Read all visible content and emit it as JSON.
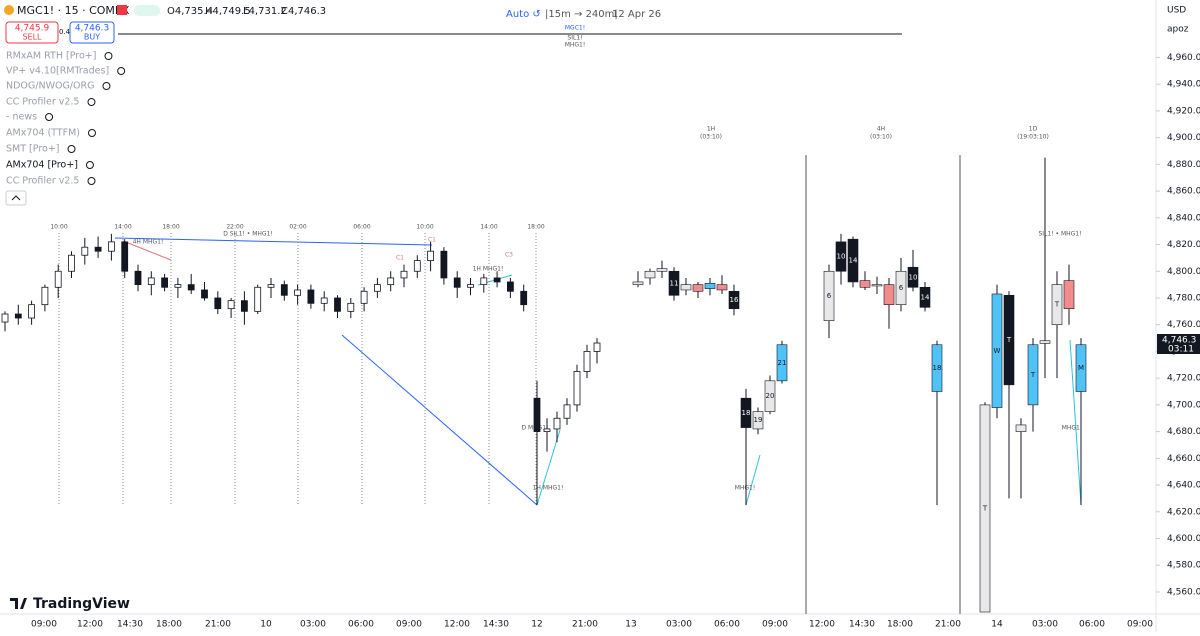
{
  "header": {
    "symbol": "MGC1! · 15 · COMEX",
    "open": "O4,735.4",
    "high": "H4,749.5",
    "low": "L4,731.2",
    "close": "C4,746.3"
  },
  "trade": {
    "sell_price": "4,745.9",
    "sell_label": "SELL",
    "spread": "0.4",
    "buy_price": "4,746.3",
    "buy_label": "BUY"
  },
  "toolbar": {
    "auto": "Auto ↺",
    "interval": "|15m → 240m|",
    "date": "12 Apr 26",
    "currency": "USD",
    "user": "apoz"
  },
  "center_labels": [
    "MGC1!",
    "SIL1!",
    "MHG1!"
  ],
  "indicators": [
    "RMxAM RTH [Pro+]",
    "VP+ v4.10[RMTrades]",
    "NDOG/NWOG/ORG",
    "CC Profiler v2.5",
    "- news",
    "AMx704 (TTFM)",
    "SMT [Pro+]",
    "AMx704 [Pro+]",
    "CC Profiler v2.5"
  ],
  "logo": "TradingView",
  "annotations": [
    "4H MHG1!",
    "D SIL1! • MHG1!",
    "C1",
    "C1",
    "C3",
    "1H MHG1!",
    "D MHG1!",
    "1H MHG1!",
    "MHG1!",
    "SIL1! • MHG1!",
    "MHG1!"
  ],
  "chart_data": {
    "type": "candlestick",
    "ylim": [
      4545,
      5003
    ],
    "yticks": [
      {
        "value": 4560,
        "label": "4,560.0"
      },
      {
        "value": 4580,
        "label": "4,580.0"
      },
      {
        "value": 4600,
        "label": "4,600.0"
      },
      {
        "value": 4620,
        "label": "4,620.0"
      },
      {
        "value": 4640,
        "label": "4,640.0"
      },
      {
        "value": 4660,
        "label": "4,660.0"
      },
      {
        "value": 4680,
        "label": "4,680.0"
      },
      {
        "value": 4700,
        "label": "4,700.0"
      },
      {
        "value": 4720,
        "label": "4,720.0"
      },
      {
        "value": 4740,
        "label": "4,740.0"
      },
      {
        "value": 4760,
        "label": "4,760.0"
      },
      {
        "value": 4780,
        "label": "4,780.0"
      },
      {
        "value": 4800,
        "label": "4,800.0"
      },
      {
        "value": 4820,
        "label": "4,820.0"
      },
      {
        "value": 4840,
        "label": "4,840.0"
      },
      {
        "value": 4860,
        "label": "4,860.0"
      },
      {
        "value": 4880,
        "label": "4,880.0"
      },
      {
        "value": 4900,
        "label": "4,900.0"
      },
      {
        "value": 4920,
        "label": "4,920.0"
      },
      {
        "value": 4940,
        "label": "4,940.0"
      },
      {
        "value": 4960,
        "label": "4,960.0"
      }
    ],
    "current_price": {
      "value": 4746.3,
      "label": "4,746.3",
      "countdown": "03:11"
    },
    "time_labels": [
      "09:00",
      "12:00",
      "14:30",
      "18:00",
      "21:00",
      "10",
      "03:00",
      "06:00",
      "09:00",
      "12:00",
      "14:30",
      "12",
      "21:00",
      "13",
      "03:00",
      "06:00",
      "09:00",
      "12:00",
      "14:30",
      "18:00",
      "21:00",
      "14",
      "03:00",
      "06:00",
      "09:00"
    ],
    "session_labels": [
      "10:00",
      "14:00",
      "18:00",
      "22:00",
      "02:00",
      "06:00",
      "10:00",
      "14:00",
      "18:00"
    ],
    "up_color": "#ffffff",
    "down_color": "#131722",
    "open": [
      4762,
      4768,
      4765,
      4775,
      4788,
      4800,
      4812,
      4818,
      4815,
      4822,
      4800,
      4790,
      4795,
      4788,
      4790,
      4786,
      4780,
      4772,
      4778,
      4770,
      4788,
      4790,
      4782,
      4786,
      4776,
      4780,
      4770,
      4776,
      4785,
      4790,
      4795,
      4800,
      4808,
      4815,
      4795,
      4788,
      4790,
      4795,
      4792,
      4785,
      4705,
      4680,
      4682,
      4690,
      4700,
      4725,
      4740
    ],
    "high": [
      4770,
      4775,
      4778,
      4790,
      4805,
      4815,
      4825,
      4826,
      4828,
      4824,
      4805,
      4800,
      4798,
      4795,
      4798,
      4792,
      4785,
      4780,
      4785,
      4790,
      4795,
      4793,
      4790,
      4790,
      4785,
      4782,
      4780,
      4788,
      4795,
      4800,
      4805,
      4812,
      4822,
      4818,
      4800,
      4795,
      4798,
      4800,
      4795,
      4790,
      4718,
      4690,
      4695,
      4705,
      4730,
      4745,
      4750
    ],
    "low": [
      4755,
      4760,
      4760,
      4770,
      4780,
      4795,
      4805,
      4810,
      4808,
      4795,
      4785,
      4782,
      4785,
      4780,
      4783,
      4778,
      4768,
      4765,
      4760,
      4768,
      4780,
      4778,
      4775,
      4772,
      4770,
      4765,
      4765,
      4770,
      4780,
      4785,
      4788,
      4795,
      4800,
      4790,
      4780,
      4782,
      4784,
      4788,
      4780,
      4770,
      4625,
      4665,
      4672,
      4685,
      4695,
      4720,
      4731
    ],
    "close": [
      4768,
      4765,
      4775,
      4788,
      4800,
      4812,
      4818,
      4815,
      4822,
      4800,
      4790,
      4795,
      4788,
      4790,
      4786,
      4780,
      4772,
      4778,
      4770,
      4788,
      4790,
      4782,
      4786,
      4776,
      4780,
      4770,
      4776,
      4785,
      4790,
      4795,
      4800,
      4808,
      4815,
      4795,
      4788,
      4790,
      4795,
      4792,
      4785,
      4775,
      4680,
      4682,
      4690,
      4700,
      4725,
      4740,
      4746.3
    ],
    "htf_panels": [
      {
        "title": "1H",
        "countdown": "(03:10)",
        "candles": [
          {
            "open": 4792,
            "high": 4800,
            "low": 4788,
            "close": 4790,
            "color": "#e8e8e8"
          },
          {
            "open": 4795,
            "high": 4802,
            "low": 4790,
            "close": 4800,
            "color": "#e8e8e8"
          },
          {
            "open": 4800,
            "high": 4808,
            "low": 4795,
            "close": 4802,
            "color": "#e8e8e8"
          },
          {
            "open": 4800,
            "high": 4803,
            "low": 4778,
            "close": 4782,
            "color": "#131722",
            "label": "11"
          },
          {
            "open": 4786,
            "high": 4795,
            "low": 4782,
            "close": 4790,
            "color": "#e8e8e8"
          },
          {
            "open": 4785,
            "high": 4792,
            "low": 4780,
            "close": 4790,
            "color": "#f28b8b"
          },
          {
            "open": 4787,
            "high": 4795,
            "low": 4782,
            "close": 4791,
            "color": "#4fc3f7"
          },
          {
            "open": 4790,
            "high": 4797,
            "low": 4783,
            "close": 4786,
            "color": "#f28b8b"
          },
          {
            "open": 4785,
            "high": 4790,
            "low": 4767,
            "close": 4772,
            "color": "#131722",
            "label": "16"
          },
          {
            "open": 4705,
            "high": 4712,
            "low": 4625,
            "close": 4683,
            "color": "#131722",
            "label": "18"
          },
          {
            "open": 4682,
            "high": 4698,
            "low": 4678,
            "close": 4695,
            "color": "#e8e8e8",
            "label": "19"
          },
          {
            "open": 4695,
            "high": 4722,
            "low": 4693,
            "close": 4718,
            "color": "#e8e8e8",
            "label": "20"
          },
          {
            "open": 4718,
            "high": 4748,
            "low": 4716,
            "close": 4745,
            "color": "#4fc3f7",
            "label": "21"
          }
        ]
      },
      {
        "title": "4H",
        "countdown": "(03:10)",
        "candles": [
          {
            "open": 4763,
            "high": 4805,
            "low": 4750,
            "close": 4800,
            "color": "#e8e8e8",
            "label": "6"
          },
          {
            "open": 4822,
            "high": 4828,
            "low": 4790,
            "close": 4800,
            "color": "#131722",
            "label": "10"
          },
          {
            "open": 4824,
            "high": 4826,
            "low": 4788,
            "close": 4792,
            "color": "#131722",
            "label": "14"
          },
          {
            "open": 4793,
            "high": 4800,
            "low": 4786,
            "close": 4788,
            "color": "#f28b8b"
          },
          {
            "open": 4790,
            "high": 4796,
            "low": 4783,
            "close": 4789,
            "color": "#e8e8e8"
          },
          {
            "open": 4790,
            "high": 4795,
            "low": 4757,
            "close": 4775,
            "color": "#f28b8b"
          },
          {
            "open": 4775,
            "high": 4810,
            "low": 4770,
            "close": 4800,
            "color": "#e8e8e8",
            "label": "6"
          },
          {
            "open": 4803,
            "high": 4816,
            "low": 4785,
            "close": 4788,
            "color": "#131722",
            "label": "10"
          },
          {
            "open": 4788,
            "high": 4792,
            "low": 4770,
            "close": 4773,
            "color": "#131722",
            "label": "14"
          },
          {
            "open": 4745,
            "high": 4748,
            "low": 4625,
            "close": 4710,
            "color": "#4fc3f7",
            "label": "18"
          }
        ]
      },
      {
        "title": "1D",
        "countdown": "(19:03:10)",
        "candles": [
          {
            "open": 4700,
            "high": 4702,
            "low": 4540,
            "close": 4545,
            "color": "#e8e8e8",
            "label": "T"
          },
          {
            "open": 4698,
            "high": 4790,
            "low": 4690,
            "close": 4783,
            "color": "#4fc3f7",
            "label": "W"
          },
          {
            "open": 4782,
            "high": 4785,
            "low": 4630,
            "close": 4715,
            "color": "#131722",
            "label": "T"
          },
          {
            "open": 4685,
            "high": 4690,
            "low": 4630,
            "close": 4680,
            "color": "#e8e8e8"
          },
          {
            "open": 4700,
            "high": 4750,
            "low": 4680,
            "close": 4745,
            "color": "#4fc3f7",
            "label": "T"
          },
          {
            "open": 4748,
            "high": 4885,
            "low": 4720,
            "close": 4746,
            "color": "#e8e8e8"
          },
          {
            "open": 4760,
            "high": 4800,
            "low": 4720,
            "close": 4790,
            "color": "#e8e8e8",
            "label": "T"
          },
          {
            "open": 4793,
            "high": 4805,
            "low": 4760,
            "close": 4772,
            "color": "#f28b8b"
          },
          {
            "open": 4745,
            "high": 4750,
            "low": 4625,
            "close": 4710,
            "color": "#4fc3f7",
            "label": "M"
          }
        ]
      }
    ]
  }
}
